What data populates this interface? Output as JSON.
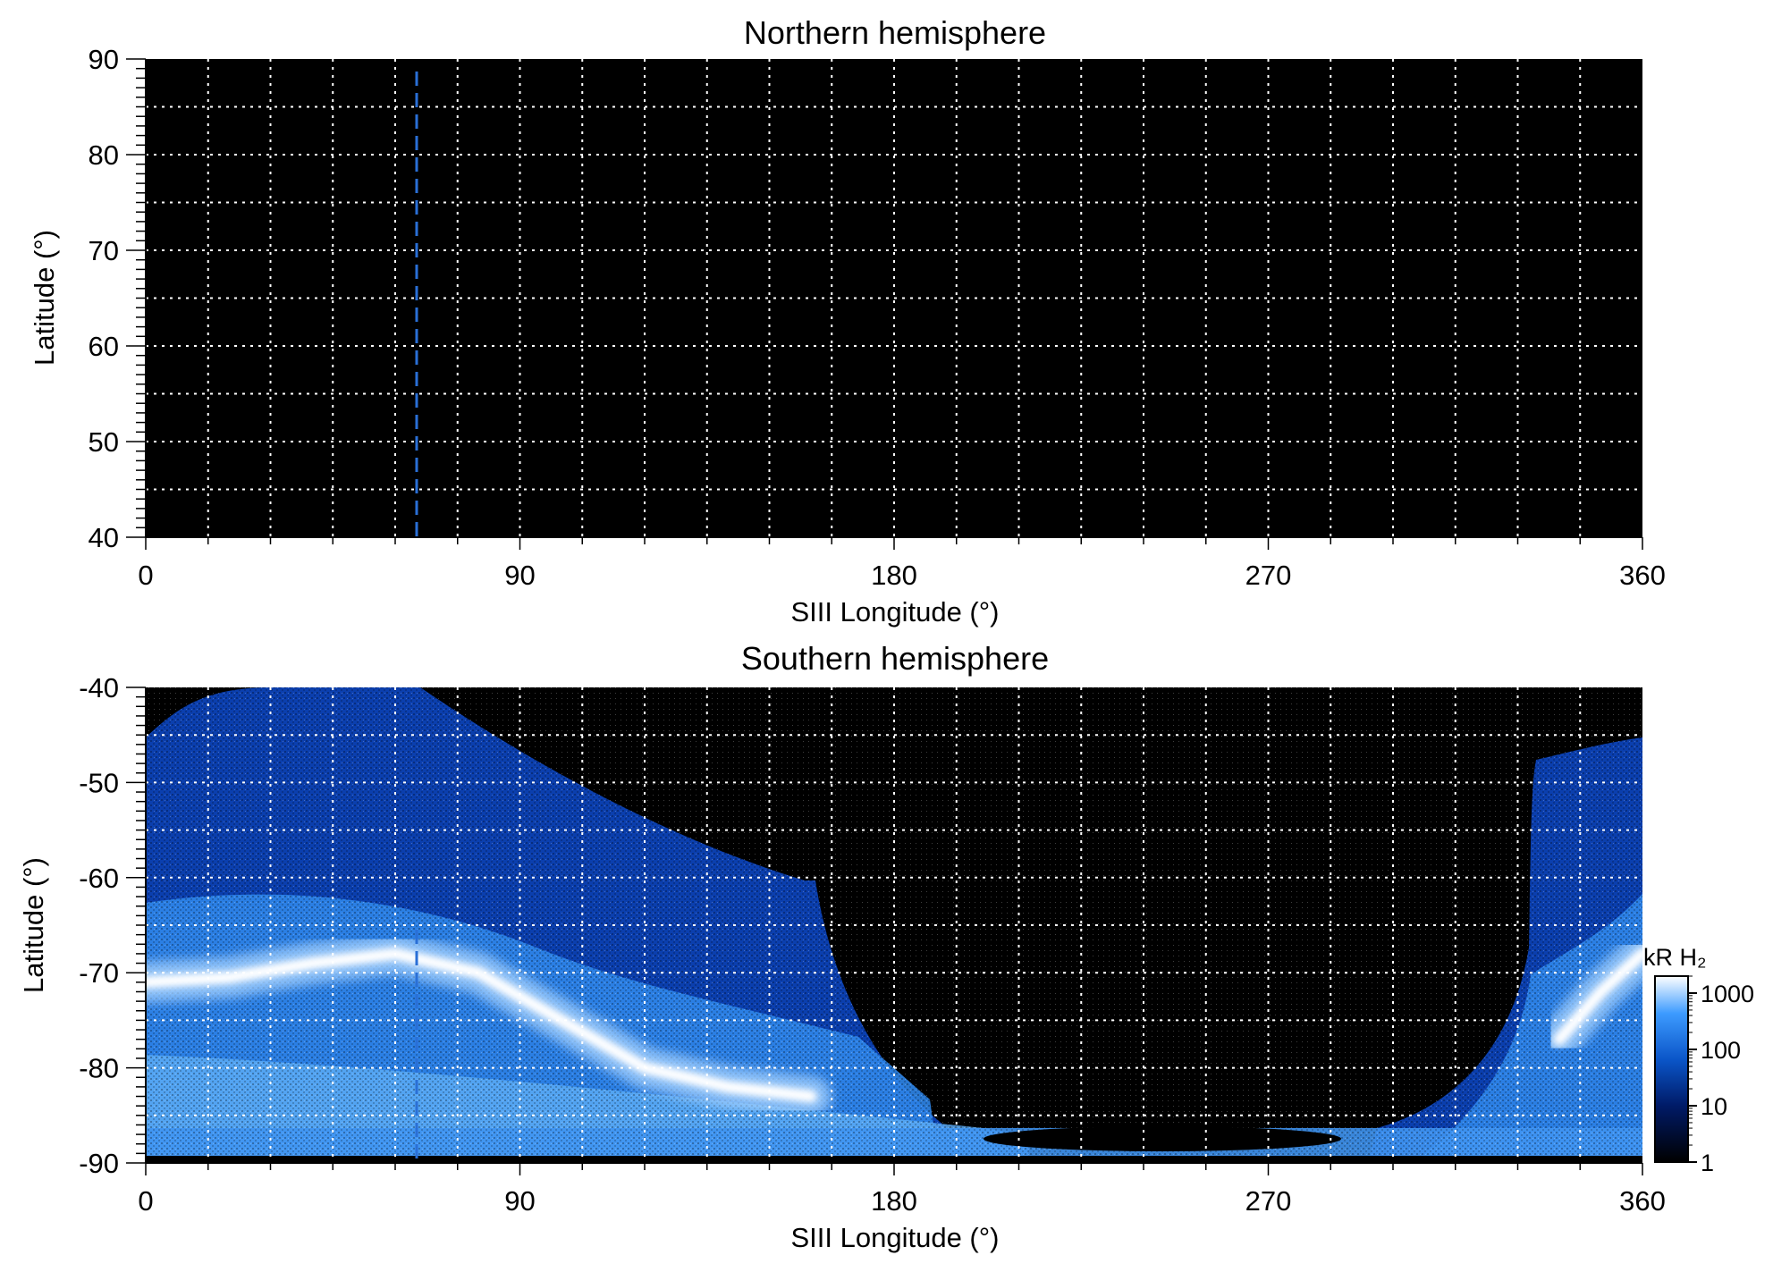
{
  "chart_data": [
    {
      "type": "heatmap",
      "title": "Northern hemisphere",
      "xlabel": "SIII Longitude (°)",
      "ylabel": "Latitude (°)",
      "xlim": [
        0,
        360
      ],
      "ylim": [
        40,
        90
      ],
      "xticks": [
        0,
        90,
        180,
        270,
        360
      ],
      "yticks": [
        40,
        50,
        60,
        70,
        80,
        90
      ],
      "grid": true,
      "grid_spacing_deg": {
        "longitude": 15,
        "latitude": 5
      },
      "emission": "none (black, no coverage)",
      "marker_line": {
        "style": "dashed",
        "color": "#2a6fd6",
        "longitude": 65
      }
    },
    {
      "type": "heatmap",
      "title": "Southern hemisphere",
      "xlabel": "SIII Longitude (°)",
      "ylabel": "Latitude (°)",
      "xlim": [
        0,
        360
      ],
      "ylim": [
        -90,
        -40
      ],
      "xticks": [
        0,
        90,
        180,
        270,
        360
      ],
      "yticks": [
        -90,
        -80,
        -70,
        -60,
        -50,
        -40
      ],
      "grid": true,
      "grid_spacing_deg": {
        "longitude": 15,
        "latitude": 5
      },
      "marker_line": {
        "style": "dashed",
        "color": "#2a6fd6",
        "longitude": 65
      },
      "main_oval": [
        {
          "lon": 0,
          "lat": -71
        },
        {
          "lon": 20,
          "lat": -70.5
        },
        {
          "lon": 40,
          "lat": -69
        },
        {
          "lon": 60,
          "lat": -68
        },
        {
          "lon": 80,
          "lat": -70
        },
        {
          "lon": 100,
          "lat": -75
        },
        {
          "lon": 120,
          "lat": -80
        },
        {
          "lon": 140,
          "lat": -82
        },
        {
          "lon": 160,
          "lat": -83
        },
        {
          "lon": 340,
          "lat": -77
        },
        {
          "lon": 350,
          "lat": -72
        },
        {
          "lon": 360,
          "lat": -68
        }
      ],
      "colorbar": {
        "label": "kR H₂",
        "scale": "log",
        "ticks": [
          "1",
          "10",
          "100",
          "1000"
        ],
        "range": [
          1,
          2000
        ],
        "colors": [
          "#000000",
          "#001a66",
          "#0a55c8",
          "#3d9bff",
          "#ffffff"
        ]
      }
    }
  ]
}
